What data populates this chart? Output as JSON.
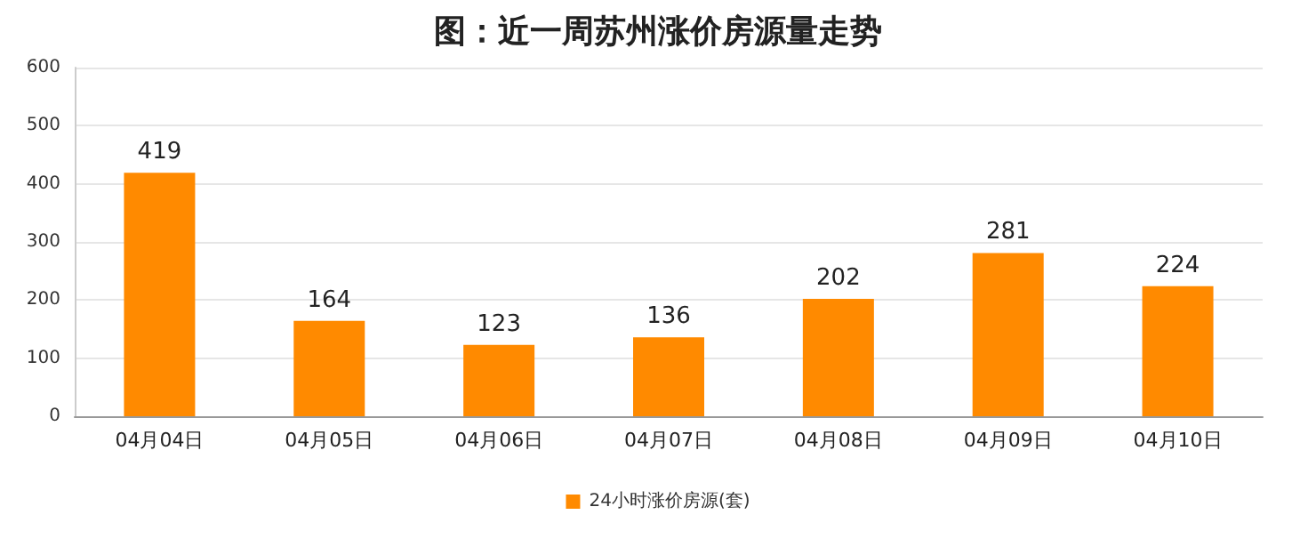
{
  "chart_data": {
    "type": "bar",
    "title": "图：近一周苏州涨价房源量走势",
    "categories": [
      "04月04日",
      "04月05日",
      "04月06日",
      "04月07日",
      "04月08日",
      "04月09日",
      "04月10日"
    ],
    "series": [
      {
        "name": "24小时涨价房源(套)",
        "color": "#ff8a00",
        "values": [
          419,
          164,
          123,
          136,
          202,
          281,
          224
        ]
      }
    ],
    "ylim": [
      0,
      600
    ],
    "yticks": [
      0,
      100,
      200,
      300,
      400,
      500,
      600
    ],
    "grid": "y",
    "legend": "bottom",
    "data_labels": true
  }
}
